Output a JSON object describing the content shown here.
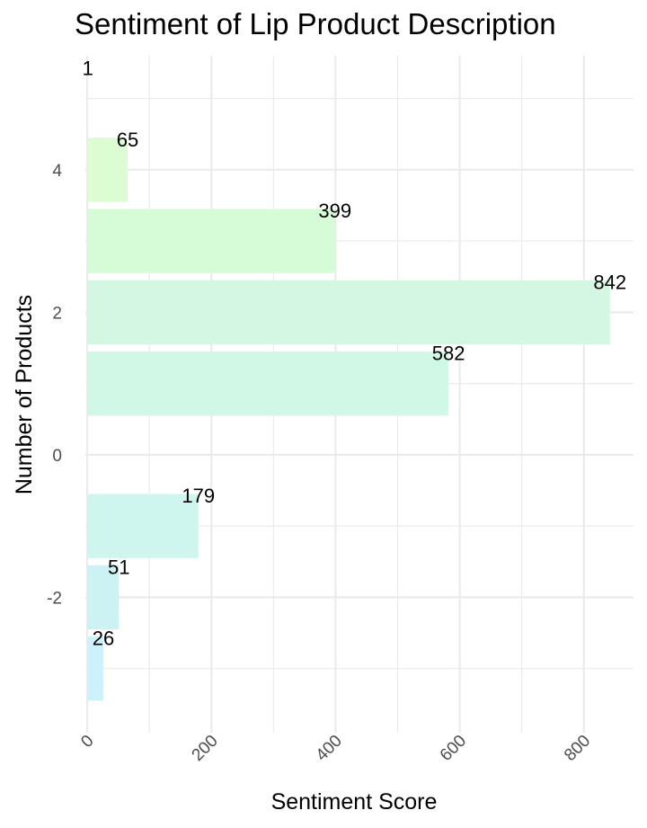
{
  "chart_data": {
    "type": "bar",
    "orientation": "horizontal",
    "title": "Sentiment of Lip Product Description",
    "xlabel": "Sentiment Score",
    "ylabel": "Number of Products",
    "categories": [
      -3,
      -2,
      -1,
      1,
      2,
      3,
      4,
      5
    ],
    "values": [
      26,
      51,
      179,
      582,
      842,
      399,
      65,
      1
    ],
    "data_labels": [
      "26",
      "51",
      "179",
      "582",
      "842",
      "399",
      "65",
      "1"
    ],
    "bar_colors": [
      "#cdf2fb",
      "#cdf2f3",
      "#cef5ee",
      "#d1f7e7",
      "#d3f7e2",
      "#d6fbd7",
      "#dbfdd1",
      "#e3fdd0"
    ],
    "xlim": [
      -3,
      880
    ],
    "ylim": [
      -3.9,
      5.6
    ],
    "x_ticks": [
      0,
      200,
      400,
      600,
      800
    ],
    "x_tick_labels": [
      "0",
      "200",
      "400",
      "600",
      "800"
    ],
    "y_ticks": [
      -2,
      0,
      2,
      4
    ],
    "y_tick_labels": [
      "-2",
      "0",
      "2",
      "4"
    ],
    "x_tick_rotation_deg": 45,
    "grid": true,
    "legend": "none",
    "background": "#ffffff",
    "grid_color": "#ebebeb"
  }
}
